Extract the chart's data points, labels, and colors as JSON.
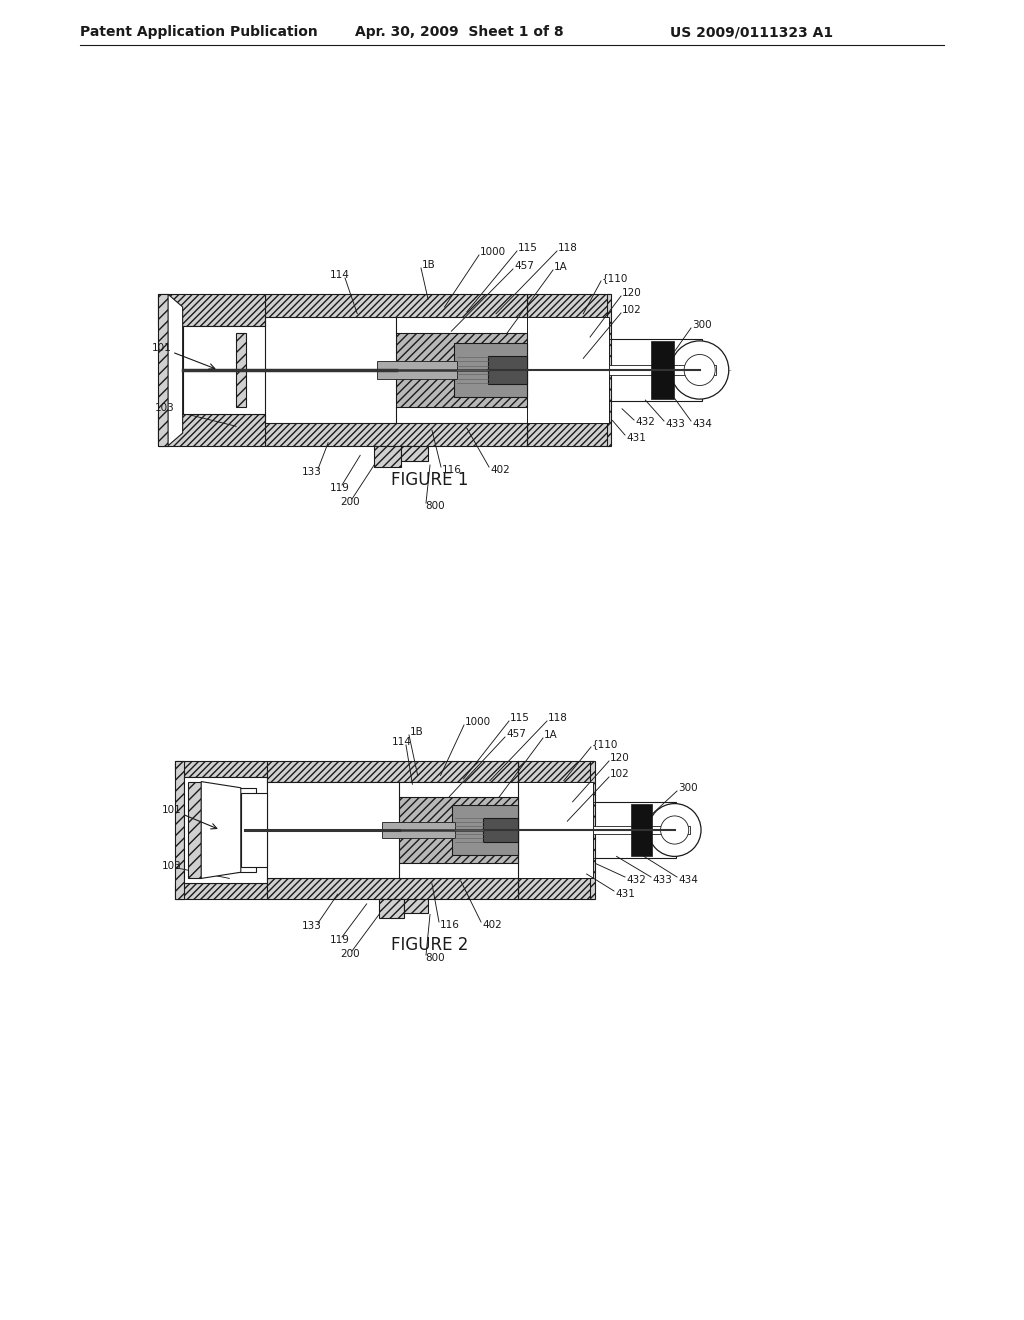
{
  "background_color": "#ffffff",
  "header_left": "Patent Application Publication",
  "header_center": "Apr. 30, 2009  Sheet 1 of 8",
  "header_right": "US 2009/0111323 A1",
  "figure1_caption": "FIGURE 1",
  "figure2_caption": "FIGURE 2",
  "header_fontsize": 10,
  "caption_fontsize": 12,
  "label_fontsize": 7.5,
  "line_color": "#1a1a1a",
  "c_light": "#d0d0d0",
  "c_mid": "#888888",
  "c_dark": "#333333",
  "c_white": "#ffffff",
  "c_gray": "#aaaaaa",
  "c_black": "#111111"
}
